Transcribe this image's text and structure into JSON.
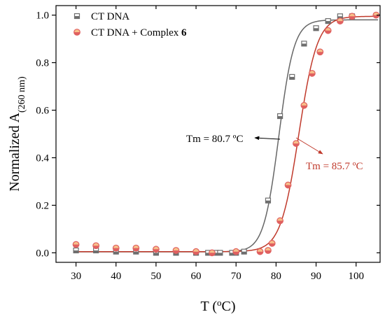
{
  "chart_data": {
    "type": "scatter",
    "title": "",
    "xlabel": {
      "main": "T (",
      "sup": "o",
      "tail": "C)"
    },
    "ylabel": {
      "main": "Normalized A",
      "sub": "(260 nm)"
    },
    "xlim": [
      25,
      106
    ],
    "ylim": [
      -0.04,
      1.04
    ],
    "xticks": [
      30,
      40,
      50,
      60,
      70,
      80,
      90,
      100
    ],
    "yticks": [
      0.0,
      0.2,
      0.4,
      0.6,
      0.8,
      1.0
    ],
    "xtick_labels": [
      "30",
      "40",
      "50",
      "60",
      "70",
      "80",
      "90",
      "100"
    ],
    "ytick_labels": [
      "0.0",
      "0.2",
      "0.4",
      "0.6",
      "0.8",
      "1.0"
    ],
    "grid": false,
    "legend_position": "top-left",
    "series": [
      {
        "name": "CT DNA",
        "name_bold": "",
        "marker": "square",
        "color": "#6e6e6e",
        "fit_color": "#666666",
        "x": [
          30,
          35,
          40,
          45,
          50,
          55,
          60,
          63,
          65,
          66,
          69,
          70,
          72,
          78,
          81,
          84,
          87,
          90,
          93,
          96,
          99
        ],
        "y": [
          0.01,
          0.01,
          0.005,
          0.005,
          0.0,
          0.0,
          0.0,
          0.0,
          0.0,
          0.0,
          0.0,
          0.0,
          0.005,
          0.22,
          0.575,
          0.74,
          0.88,
          0.945,
          0.975,
          0.995,
          0.995
        ],
        "fit": {
          "tm": 80.7,
          "width": 1.9,
          "low": 0.004,
          "high": 0.98
        }
      },
      {
        "name": "CT DNA + Complex ",
        "name_bold": "6",
        "marker": "circle",
        "color": "#e06060",
        "fit_color": "#c0392b",
        "x": [
          30,
          35,
          40,
          45,
          50,
          55,
          60,
          64,
          70,
          76,
          78,
          79,
          81,
          83,
          85,
          87,
          89,
          91,
          93,
          96,
          99,
          105
        ],
        "y": [
          0.035,
          0.03,
          0.02,
          0.02,
          0.015,
          0.01,
          0.005,
          0.0,
          0.005,
          0.005,
          0.01,
          0.04,
          0.135,
          0.285,
          0.46,
          0.62,
          0.755,
          0.845,
          0.935,
          0.975,
          0.995,
          1.0
        ],
        "fit": {
          "tm": 85.7,
          "width": 2.3,
          "low": 0.005,
          "high": 0.995
        }
      }
    ],
    "annotations": [
      {
        "text": "Tm = 80.7 ºC",
        "color": "#000000",
        "arrow_to": [
          80.7,
          0.48
        ],
        "anchor": [
          68,
          0.48
        ]
      },
      {
        "text": "Tm = 85.7 ºC",
        "color": "#c0392b",
        "arrow_to": [
          91.5,
          0.42
        ],
        "anchor": [
          85.6,
          0.48
        ]
      }
    ]
  }
}
